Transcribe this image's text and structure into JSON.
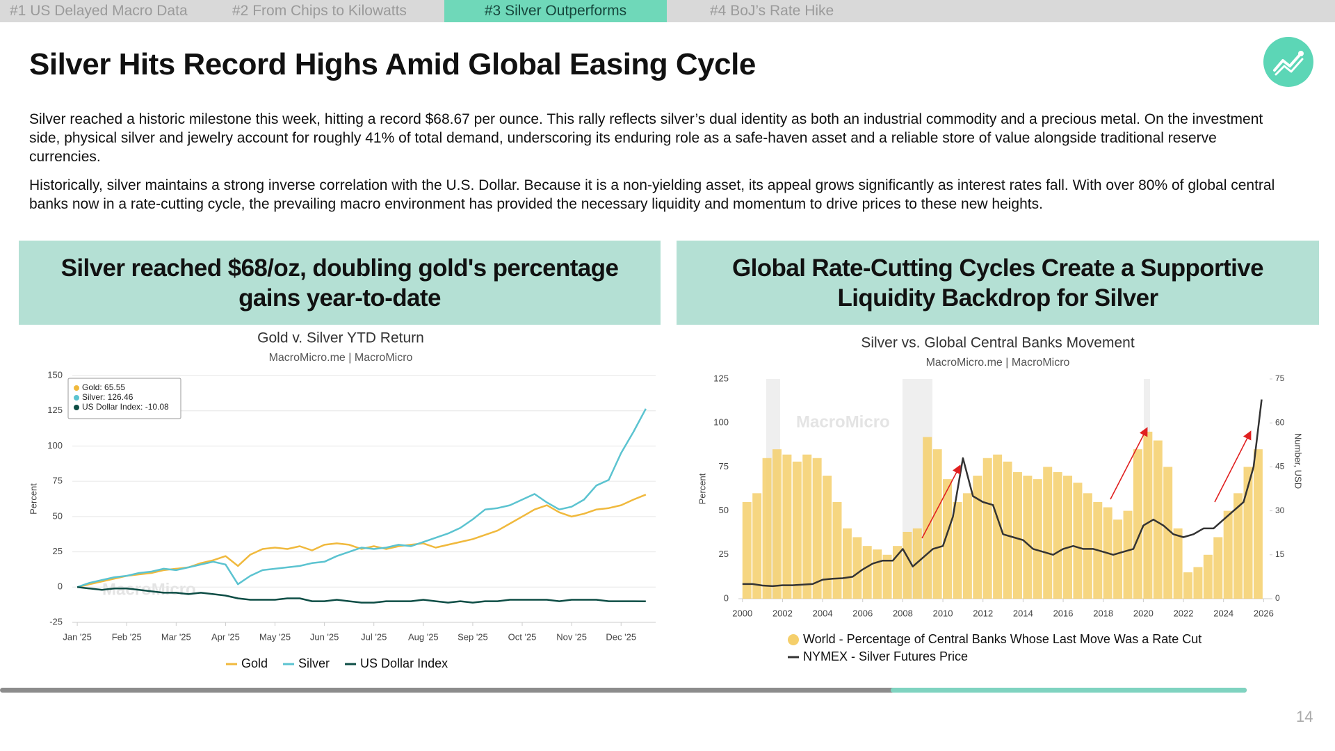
{
  "tabs": [
    "#1 US Delayed Macro Data",
    "#2 From Chips to Kilowatts",
    "#3 Silver Outperforms",
    "#4 BoJ’s Rate Hike"
  ],
  "title": "Silver Hits Record Highs Amid Global Easing Cycle",
  "paragraphs": [
    "Silver reached a historic milestone this week, hitting a record $68.67 per ounce. This rally reflects silver’s dual identity as both an industrial commodity and a precious metal. On the investment side, physical silver and jewelry account for roughly 41% of total demand, underscoring its enduring role as a safe-haven asset and a reliable store of value alongside traditional reserve currencies.",
    "Historically, silver maintains a strong inverse correlation with the U.S. Dollar. Because it is a non-yielding asset, its appeal grows significantly as interest rates fall. With over 80% of global central banks now in a rate-cutting cycle, the prevailing macro environment has provided the necessary liquidity and momentum to drive prices to these new heights."
  ],
  "panels": [
    {
      "heading": "Silver reached $68/oz, doubling gold's percentage gains year-to-date"
    },
    {
      "heading": "Global Rate-Cutting Cycles Create a Supportive Liquidity Backdrop for Silver"
    }
  ],
  "page_number": 14,
  "chart_data": [
    {
      "type": "line",
      "title": "Gold v. Silver YTD Return",
      "subtitle": "MacroMicro.me | MacroMicro",
      "watermark": "MacroMicro",
      "ylabel": "Percent",
      "tooltip": [
        "Gold: 65.55",
        "Silver: 126.46",
        "US Dollar Index: -10.08"
      ],
      "x": [
        0,
        0.25,
        0.5,
        0.75,
        1,
        1.25,
        1.5,
        1.75,
        2,
        2.25,
        2.5,
        2.75,
        3,
        3.25,
        3.5,
        3.75,
        4,
        4.25,
        4.5,
        4.75,
        5,
        5.25,
        5.5,
        5.75,
        6,
        6.25,
        6.5,
        6.75,
        7,
        7.25,
        7.5,
        7.75,
        8,
        8.25,
        8.5,
        8.75,
        9,
        9.25,
        9.5,
        9.75,
        10,
        10.25,
        10.5,
        10.75,
        11,
        11.25,
        11.5
      ],
      "series": [
        {
          "name": "Gold",
          "color": "#f0b93d",
          "values": [
            0,
            2,
            4,
            6,
            8,
            9,
            10,
            12,
            13,
            14,
            17,
            19,
            22,
            15,
            23,
            27,
            28,
            27,
            29,
            26,
            30,
            31,
            30,
            27,
            29,
            27,
            29,
            30,
            31,
            28,
            30,
            32,
            34,
            37,
            40,
            45,
            50,
            55,
            58,
            53,
            50,
            52,
            55,
            56,
            58,
            62,
            65.55
          ]
        },
        {
          "name": "Silver",
          "color": "#5bc3d0",
          "values": [
            0,
            3,
            5,
            7,
            8,
            10,
            11,
            13,
            12,
            14,
            16,
            18,
            16,
            2,
            8,
            12,
            13,
            14,
            15,
            17,
            18,
            22,
            25,
            28,
            27,
            28,
            30,
            29,
            32,
            35,
            38,
            42,
            48,
            55,
            56,
            58,
            62,
            66,
            60,
            55,
            57,
            62,
            72,
            76,
            95,
            110,
            126.46
          ]
        },
        {
          "name": "US Dollar Index",
          "color": "#0d4d45",
          "values": [
            0,
            -1,
            -2,
            -1,
            -1,
            -2,
            -3,
            -4,
            -4,
            -5,
            -4,
            -5,
            -6,
            -8,
            -9,
            -9,
            -9,
            -8,
            -8,
            -10,
            -10,
            -9,
            -10,
            -11,
            -11,
            -10,
            -10,
            -10,
            -9,
            -10,
            -11,
            -10,
            -11,
            -10,
            -10,
            -9,
            -9,
            -9,
            -9,
            -10,
            -9,
            -9,
            -9,
            -10,
            -10,
            -10,
            -10.08
          ]
        }
      ],
      "xlim": [
        -0.1,
        11.7
      ],
      "xticks": [
        {
          "value": 0,
          "label": "Jan '25"
        },
        {
          "value": 1,
          "label": "Feb '25"
        },
        {
          "value": 2,
          "label": "Mar '25"
        },
        {
          "value": 3,
          "label": "Apr '25"
        },
        {
          "value": 4,
          "label": "May '25"
        },
        {
          "value": 5,
          "label": "Jun '25"
        },
        {
          "value": 6,
          "label": "Jul '25"
        },
        {
          "value": 7,
          "label": "Aug '25"
        },
        {
          "value": 8,
          "label": "Sep '25"
        },
        {
          "value": 9,
          "label": "Oct '25"
        },
        {
          "value": 10,
          "label": "Nov '25"
        },
        {
          "value": 11,
          "label": "Dec '25"
        }
      ],
      "ylim": [
        -25,
        150
      ],
      "yticks": [
        -25,
        0,
        25,
        50,
        75,
        100,
        125,
        150
      ],
      "grid": true,
      "legend": "bottom"
    },
    {
      "type": "bar",
      "title": "Silver vs. Global Central Banks Movement",
      "subtitle": "MacroMicro.me | MacroMicro",
      "watermark": "MacroMicro",
      "ylabel": "Percent",
      "y2label": "Number, USD",
      "series": [
        {
          "name": "World - Percentage of Central Banks Whose Last Move Was a Rate Cut",
          "color": "#f5cf6b",
          "type": "bar",
          "x": [
            2000,
            2000.5,
            2001,
            2001.5,
            2002,
            2002.5,
            2003,
            2003.5,
            2004,
            2004.5,
            2005,
            2005.5,
            2006,
            2006.5,
            2007,
            2007.5,
            2008,
            2008.5,
            2009,
            2009.5,
            2010,
            2010.5,
            2011,
            2011.5,
            2012,
            2012.5,
            2013,
            2013.5,
            2014,
            2014.5,
            2015,
            2015.5,
            2016,
            2016.5,
            2017,
            2017.5,
            2018,
            2018.5,
            2019,
            2019.5,
            2020,
            2020.5,
            2021,
            2021.5,
            2022,
            2022.5,
            2023,
            2023.5,
            2024,
            2024.5,
            2025,
            2025.5
          ],
          "values": [
            55,
            60,
            80,
            85,
            82,
            78,
            82,
            80,
            70,
            55,
            40,
            35,
            30,
            28,
            25,
            30,
            38,
            40,
            92,
            85,
            68,
            55,
            60,
            70,
            80,
            82,
            78,
            72,
            70,
            68,
            75,
            72,
            70,
            66,
            60,
            55,
            52,
            45,
            50,
            85,
            95,
            90,
            75,
            40,
            15,
            18,
            25,
            35,
            50,
            60,
            75,
            85
          ]
        },
        {
          "name": "NYMEX - Silver Futures Price",
          "color": "#333333",
          "type": "line",
          "axis": "y2",
          "x": [
            2000,
            2000.5,
            2001,
            2001.5,
            2002,
            2002.5,
            2003,
            2003.5,
            2004,
            2004.5,
            2005,
            2005.5,
            2006,
            2006.5,
            2007,
            2007.5,
            2008,
            2008.5,
            2009,
            2009.5,
            2010,
            2010.5,
            2011,
            2011.5,
            2012,
            2012.5,
            2013,
            2013.5,
            2014,
            2014.5,
            2015,
            2015.5,
            2016,
            2016.5,
            2017,
            2017.5,
            2018,
            2018.5,
            2019,
            2019.5,
            2020,
            2020.5,
            2021,
            2021.5,
            2022,
            2022.5,
            2023,
            2023.5,
            2024,
            2024.5,
            2025,
            2025.5,
            2025.9
          ],
          "values": [
            5,
            5,
            4.5,
            4.3,
            4.6,
            4.6,
            4.8,
            5,
            6.5,
            6.8,
            7,
            7.5,
            10,
            12,
            13,
            13,
            17,
            11,
            14,
            17,
            18,
            28,
            48,
            35,
            33,
            32,
            22,
            21,
            20,
            17,
            16,
            15,
            17,
            18,
            17,
            17,
            16,
            15,
            16,
            17,
            25,
            27,
            25,
            22,
            21,
            22,
            24,
            24,
            27,
            30,
            33,
            45,
            68
          ]
        }
      ],
      "xlim": [
        1999.8,
        2026.3
      ],
      "xticks": [
        2000,
        2002,
        2004,
        2006,
        2008,
        2010,
        2012,
        2014,
        2016,
        2018,
        2020,
        2022,
        2024,
        2026
      ],
      "ylim": [
        0,
        125
      ],
      "yticks": [
        0,
        25,
        50,
        75,
        100,
        125
      ],
      "y2lim": [
        0,
        75
      ],
      "y2ticks": [
        0,
        15,
        30,
        45,
        60,
        75
      ],
      "grid": false,
      "legend": "bottom"
    }
  ]
}
